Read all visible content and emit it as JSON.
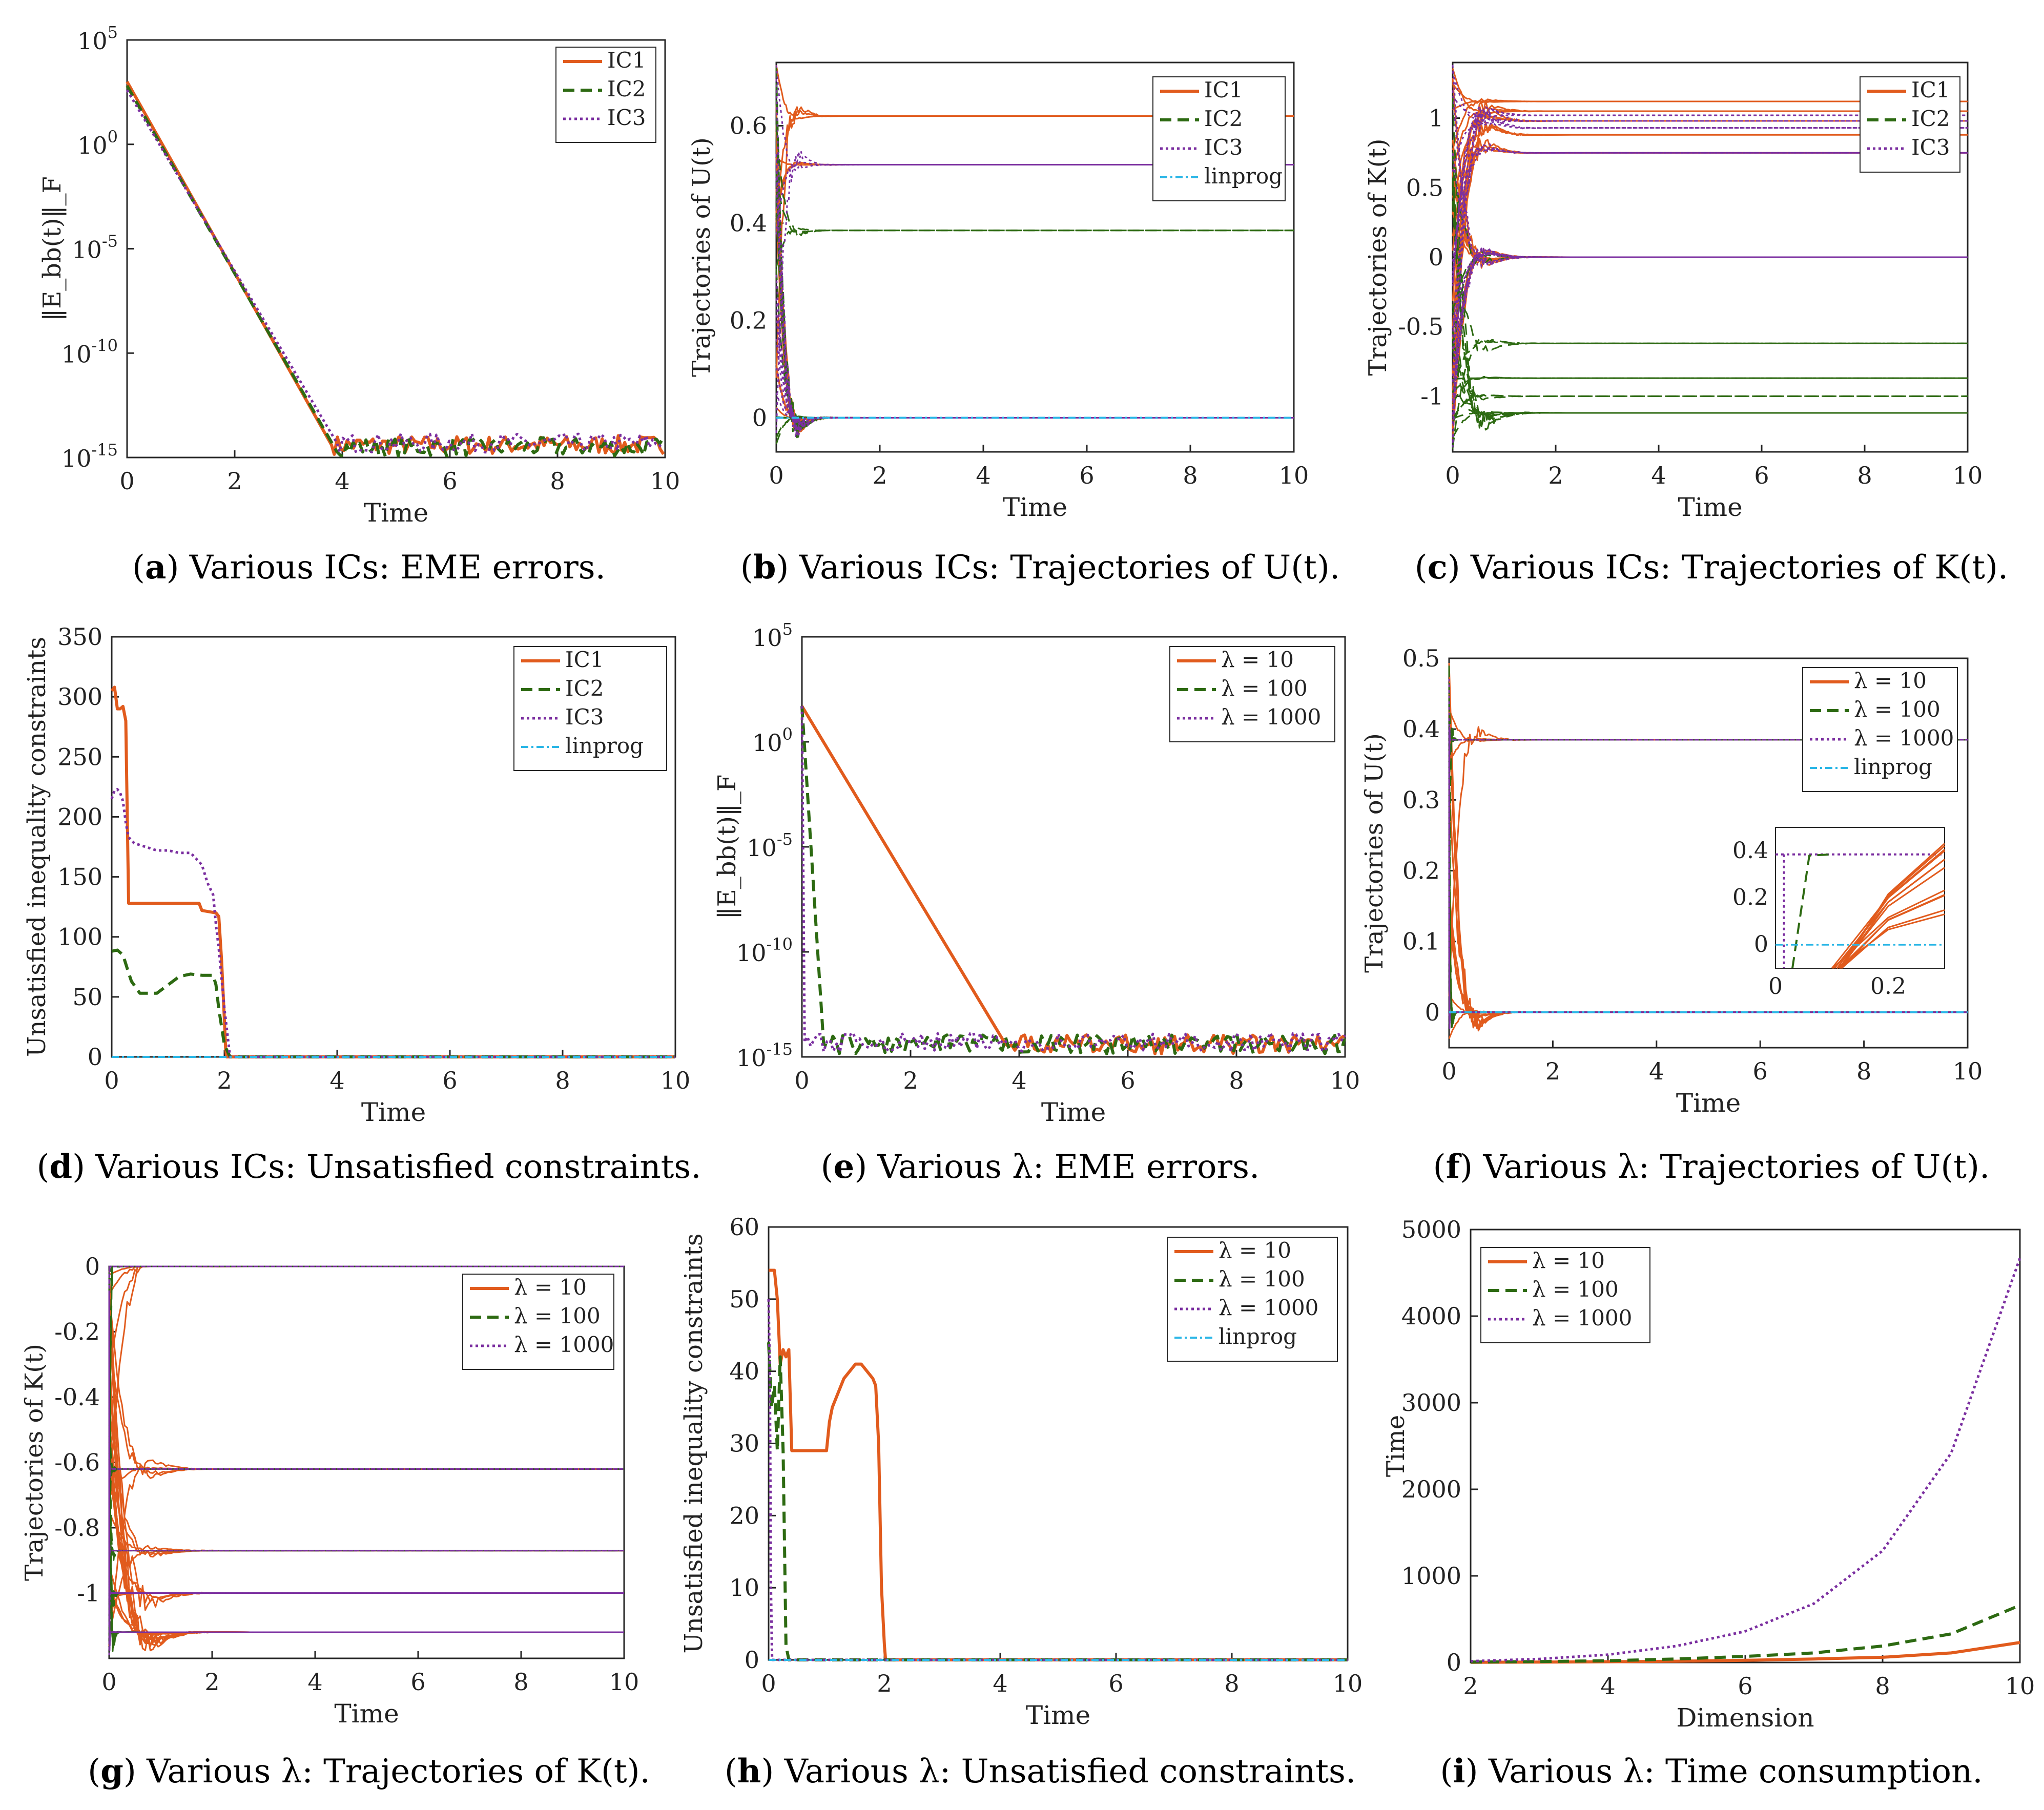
{
  "colors": {
    "s1": "#e15b1d",
    "s2": "#2d6a12",
    "s3": "#7b2fa0",
    "lp": "#2bb6e6"
  },
  "panels": [
    {
      "id": "a",
      "caption": {
        "label": "a",
        "text": "Various ICs: EME errors."
      },
      "legend_names": [
        "IC1",
        "IC2",
        "IC3"
      ]
    },
    {
      "id": "b",
      "caption": {
        "label": "b",
        "text": "Various ICs: Trajectories of U(t)."
      },
      "legend_names": [
        "IC1",
        "IC2",
        "IC3",
        "linprog"
      ]
    },
    {
      "id": "c",
      "caption": {
        "label": "c",
        "text": "Various ICs: Trajectories of K(t)."
      },
      "legend_names": [
        "IC1",
        "IC2",
        "IC3"
      ]
    },
    {
      "id": "d",
      "caption": {
        "label": "d",
        "text": "Various ICs: Unsatisfied constraints."
      },
      "legend_names": [
        "IC1",
        "IC2",
        "IC3",
        "linprog"
      ]
    },
    {
      "id": "e",
      "caption": {
        "label": "e",
        "text": "Various λ: EME errors."
      },
      "legend_names": [
        "λ = 10",
        "λ = 100",
        "λ = 1000"
      ]
    },
    {
      "id": "f",
      "caption": {
        "label": "f",
        "text": "Various λ: Trajectories of U(t)."
      },
      "legend_names": [
        "λ = 10",
        "λ = 100",
        "λ = 1000",
        "linprog"
      ]
    },
    {
      "id": "g",
      "caption": {
        "label": "g",
        "text": "Various λ: Trajectories of K(t)."
      },
      "legend_names": [
        "λ = 10",
        "λ = 100",
        "λ = 1000"
      ]
    },
    {
      "id": "h",
      "caption": {
        "label": "h",
        "text": "Various λ: Unsatisfied constraints."
      },
      "legend_names": [
        "λ = 10",
        "λ = 100",
        "λ = 1000",
        "linprog"
      ]
    },
    {
      "id": "i",
      "caption": {
        "label": "i",
        "text": "Various λ: Time consumption."
      },
      "legend_names": [
        "λ = 10",
        "λ = 100",
        "λ = 1000"
      ]
    }
  ],
  "chart_data": [
    {
      "id": "a",
      "type": "line",
      "title": "",
      "xlabel": "Time",
      "ylabel": "‖E_bb(t)‖_F",
      "yscale": "log",
      "xlim": [
        0,
        10
      ],
      "ylim_exp": [
        -15,
        5
      ],
      "xticks": [
        0,
        2,
        4,
        6,
        8,
        10
      ],
      "yticks_exp": [
        -15,
        -10,
        -5,
        0,
        5
      ],
      "legend": "top-right",
      "series": [
        {
          "name": "IC1",
          "log10_start": 3,
          "converge_time": 3.8,
          "floor_log10": -14.4
        },
        {
          "name": "IC2",
          "log10_start": 2.8,
          "converge_time": 3.85,
          "floor_log10": -14.5
        },
        {
          "name": "IC3",
          "log10_start": 2.6,
          "converge_time": 3.9,
          "floor_log10": -14.3
        }
      ]
    },
    {
      "id": "b",
      "type": "line",
      "title": "",
      "xlabel": "Time",
      "ylabel": "Trajectories of U(t)",
      "xlim": [
        0,
        10
      ],
      "ylim": [
        -0.07,
        0.73
      ],
      "xticks": [
        0,
        2,
        4,
        6,
        8,
        10
      ],
      "yticks": [
        0,
        0.2,
        0.4,
        0.6
      ],
      "legend": "top-right",
      "series": [
        {
          "name": "IC1",
          "steady_values": [
            0.62,
            0.52,
            0
          ],
          "converge_time": 0.8
        },
        {
          "name": "IC2",
          "steady_values": [
            0.385,
            0
          ],
          "converge_time": 0.8
        },
        {
          "name": "IC3",
          "steady_values": [
            0.52,
            0
          ],
          "converge_time": 0.8
        },
        {
          "name": "linprog",
          "steady_values": [
            0
          ]
        }
      ]
    },
    {
      "id": "c",
      "type": "line",
      "title": "",
      "xlabel": "Time",
      "ylabel": "Trajectories of K(t)",
      "xlim": [
        0,
        10
      ],
      "ylim": [
        -1.4,
        1.4
      ],
      "xticks": [
        0,
        2,
        4,
        6,
        8,
        10
      ],
      "yticks": [
        -1,
        -0.5,
        0,
        0.5,
        1
      ],
      "legend": "top-right",
      "series": [
        {
          "name": "IC1",
          "steady_values": [
            1.12,
            1.05,
            0.98,
            0.88,
            0.75,
            0
          ],
          "converge_time": 1.2
        },
        {
          "name": "IC2",
          "steady_values": [
            0,
            -0.62,
            -0.87,
            -1.0,
            -1.12
          ],
          "converge_time": 1.2
        },
        {
          "name": "IC3",
          "steady_values": [
            1.02,
            0.98,
            0.93,
            0.75,
            0
          ],
          "converge_time": 1.2
        }
      ]
    },
    {
      "id": "d",
      "type": "line",
      "title": "",
      "xlabel": "Time",
      "ylabel": "Unsatisfied inequality constraints",
      "xlim": [
        0,
        10
      ],
      "ylim": [
        0,
        350
      ],
      "xticks": [
        0,
        2,
        4,
        6,
        8,
        10
      ],
      "yticks": [
        0,
        50,
        100,
        150,
        200,
        250,
        300,
        350
      ],
      "legend": "top-right",
      "series": [
        {
          "name": "IC1",
          "x": [
            0,
            0.05,
            0.1,
            0.15,
            0.2,
            0.25,
            0.3,
            1.55,
            1.6,
            1.85,
            1.9,
            1.95,
            2.0,
            2.02,
            2.04,
            2.1,
            10
          ],
          "y": [
            305,
            308,
            290,
            290,
            292,
            280,
            128,
            128,
            122,
            120,
            117,
            80,
            30,
            8,
            0,
            0,
            0
          ]
        },
        {
          "name": "IC2",
          "x": [
            0,
            0.1,
            0.2,
            0.3,
            0.35,
            0.5,
            0.8,
            1.0,
            1.2,
            1.4,
            1.6,
            1.8,
            1.85,
            1.9,
            2.0,
            2.1,
            10
          ],
          "y": [
            88,
            89,
            85,
            70,
            63,
            53,
            53,
            60,
            67,
            69,
            68,
            68,
            60,
            40,
            10,
            0,
            0
          ]
        },
        {
          "name": "IC3",
          "x": [
            0,
            0.05,
            0.1,
            0.15,
            0.2,
            0.25,
            0.3,
            0.4,
            0.6,
            0.8,
            1.0,
            1.2,
            1.4,
            1.6,
            1.7,
            1.8,
            1.85,
            1.9,
            2.0,
            2.1,
            10
          ],
          "y": [
            215,
            222,
            223,
            220,
            213,
            195,
            183,
            178,
            175,
            172,
            172,
            170,
            170,
            160,
            145,
            135,
            110,
            90,
            40,
            0,
            0
          ]
        },
        {
          "name": "linprog",
          "x": [
            0,
            10
          ],
          "y": [
            0,
            0
          ]
        }
      ]
    },
    {
      "id": "e",
      "type": "line",
      "title": "",
      "xlabel": "Time",
      "ylabel": "‖E_bb(t)‖_F",
      "yscale": "log",
      "xlim": [
        0,
        10
      ],
      "ylim_exp": [
        -15,
        5
      ],
      "xticks": [
        0,
        2,
        4,
        6,
        8,
        10
      ],
      "yticks_exp": [
        -15,
        -10,
        -5,
        0,
        5
      ],
      "legend": "top-right",
      "series": [
        {
          "name": "λ = 10",
          "log10_start": 1.7,
          "converge_time": 3.75,
          "floor_log10": -14.4
        },
        {
          "name": "λ = 100",
          "log10_start": 1.7,
          "converge_time": 0.4,
          "floor_log10": -14.4
        },
        {
          "name": "λ = 1000",
          "log10_start": 1.7,
          "converge_time": 0.05,
          "floor_log10": -14.3
        }
      ]
    },
    {
      "id": "f",
      "type": "line",
      "title": "",
      "xlabel": "Time",
      "ylabel": "Trajectories of U(t)",
      "xlim": [
        0,
        10
      ],
      "ylim": [
        -0.05,
        0.5
      ],
      "xticks": [
        0,
        2,
        4,
        6,
        8,
        10
      ],
      "yticks": [
        0,
        0.1,
        0.2,
        0.3,
        0.4,
        0.5
      ],
      "legend": "top-right",
      "series": [
        {
          "name": "λ = 10",
          "steady_values": [
            0.385,
            0
          ],
          "converge_time": 1.0,
          "peak": 0.48
        },
        {
          "name": "λ = 100",
          "steady_values": [
            0.385,
            0
          ],
          "converge_time": 0.12
        },
        {
          "name": "λ = 1000",
          "steady_values": [
            0.385,
            0
          ],
          "converge_time": 0.02
        },
        {
          "name": "linprog",
          "steady_values": [
            0
          ]
        }
      ],
      "inset": {
        "xlim": [
          0,
          0.3
        ],
        "ylim": [
          -0.1,
          0.5
        ],
        "xticks": [
          0,
          0.2
        ],
        "yticks": [
          0,
          0.2,
          0.4
        ]
      }
    },
    {
      "id": "g",
      "type": "line",
      "title": "",
      "xlabel": "Time",
      "ylabel": "Trajectories of K(t)",
      "xlim": [
        0,
        10
      ],
      "ylim": [
        -1.2,
        0
      ],
      "xticks": [
        0,
        2,
        4,
        6,
        8,
        10
      ],
      "yticks": [
        -1,
        -0.8,
        -0.6,
        -0.4,
        -0.2,
        0
      ],
      "legend": "top-right",
      "series": [
        {
          "name": "λ = 10",
          "steady_values": [
            0,
            -0.62,
            -0.87,
            -1.0,
            -1.12
          ],
          "converge_time": 1.5
        },
        {
          "name": "λ = 100",
          "steady_values": [
            0,
            -0.62,
            -0.87,
            -1.0,
            -1.12
          ],
          "converge_time": 0.15
        },
        {
          "name": "λ = 1000",
          "steady_values": [
            0,
            -0.62,
            -0.87,
            -1.0,
            -1.12
          ],
          "converge_time": 0.02
        }
      ]
    },
    {
      "id": "h",
      "type": "line",
      "title": "",
      "xlabel": "Time",
      "ylabel": "Unsatisfied inequality constraints",
      "xlim": [
        0,
        10
      ],
      "ylim": [
        0,
        60
      ],
      "xticks": [
        0,
        2,
        4,
        6,
        8,
        10
      ],
      "yticks": [
        0,
        10,
        20,
        30,
        40,
        50,
        60
      ],
      "legend": "top-right",
      "series": [
        {
          "name": "λ = 10",
          "x": [
            0,
            0.05,
            0.1,
            0.15,
            0.2,
            0.25,
            0.3,
            0.35,
            0.4,
            0.5,
            1.0,
            1.05,
            1.1,
            1.2,
            1.3,
            1.4,
            1.5,
            1.6,
            1.8,
            1.85,
            1.9,
            1.95,
            2.0,
            2.02,
            10
          ],
          "y": [
            54,
            54,
            54,
            50,
            41,
            43,
            42,
            43,
            29,
            29,
            29,
            33,
            35,
            37,
            39,
            40,
            41,
            41,
            39,
            38,
            30,
            10,
            2,
            0,
            0
          ]
        },
        {
          "name": "λ = 100",
          "x": [
            0,
            0.05,
            0.1,
            0.15,
            0.2,
            0.25,
            0.3,
            0.35,
            10
          ],
          "y": [
            44,
            35,
            38,
            29,
            42,
            29,
            2,
            0,
            0
          ]
        },
        {
          "name": "λ = 1000",
          "x": [
            0,
            0.02,
            0.04,
            0.06,
            10
          ],
          "y": [
            50,
            40,
            10,
            0,
            0
          ]
        },
        {
          "name": "linprog",
          "x": [
            0,
            10
          ],
          "y": [
            0,
            0
          ]
        }
      ]
    },
    {
      "id": "i",
      "type": "line",
      "title": "",
      "xlabel": "Dimension",
      "ylabel": "Time",
      "xlim": [
        2,
        10
      ],
      "ylim": [
        0,
        5000
      ],
      "xticks": [
        2,
        4,
        6,
        8,
        10
      ],
      "yticks": [
        0,
        1000,
        2000,
        3000,
        4000,
        5000
      ],
      "legend": "top-left",
      "series": [
        {
          "name": "λ = 10",
          "x": [
            2,
            3,
            4,
            5,
            6,
            7,
            8,
            9,
            10
          ],
          "y": [
            2,
            4,
            8,
            14,
            25,
            40,
            60,
            110,
            230
          ]
        },
        {
          "name": "λ = 100",
          "x": [
            2,
            3,
            4,
            5,
            6,
            7,
            8,
            9,
            10
          ],
          "y": [
            5,
            10,
            20,
            40,
            70,
            110,
            190,
            330,
            660
          ]
        },
        {
          "name": "λ = 1000",
          "x": [
            2,
            3,
            4,
            5,
            6,
            7,
            8,
            9,
            10
          ],
          "y": [
            15,
            40,
            90,
            190,
            360,
            680,
            1290,
            2420,
            4670
          ]
        }
      ]
    }
  ]
}
